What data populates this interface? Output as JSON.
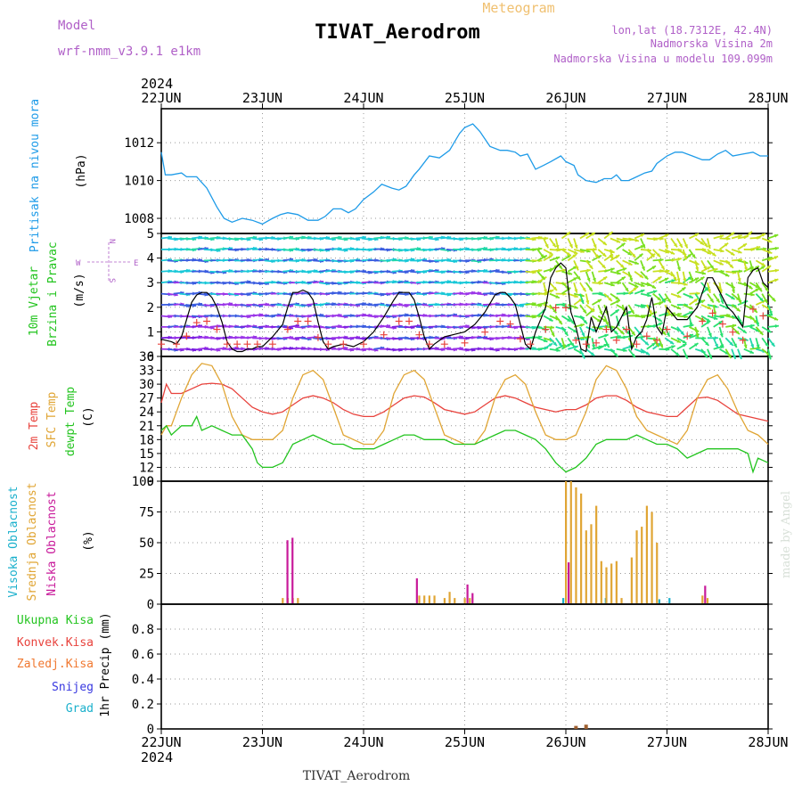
{
  "header": {
    "model_label": "Model",
    "model_value": "wrf-nmm_v3.9.1  e1km",
    "meteogram_label": "Meteogram",
    "station_title": "TIVAT_Aerodrom",
    "lonlat": "lon,lat (18.7312E, 42.4N)",
    "altitude": "Nadmorska Visina 2m",
    "model_altitude": "Nadmorska Visina u modelu 109.099m",
    "year_top": "2024",
    "year_bottom": "2024",
    "footer_station": "TIVAT_Aerodrom",
    "credit": "made by Angel"
  },
  "colors": {
    "pressure": "#1e9be8",
    "temp2m": "#e8423c",
    "sfc_temp": "#e0a534",
    "dewpt": "#22c41e",
    "wind_speed": "#000000",
    "gust_marks": "#e8423c",
    "cloud_high": "#1ab0cc",
    "cloud_mid": "#e0a534",
    "cloud_low": "#c81a9a",
    "title_purple": "#b060c8",
    "meteogram_orange": "#f0c070"
  },
  "chart_data": [
    {
      "type": "line",
      "panel": "pressure",
      "ylabel_lines": [
        "Pritisak na nivou mora"
      ],
      "unit": "(hPa)",
      "ylim": [
        1007.2,
        1013.8
      ],
      "yticks": [
        1008,
        1010,
        1012
      ],
      "x_days": [
        "22JUN",
        "23JUN",
        "24JUN",
        "25JUN",
        "26JUN",
        "27JUN",
        "28JUN"
      ],
      "grid": true,
      "series": [
        {
          "x": [
            0,
            0.04,
            0.1,
            0.2,
            0.25,
            0.35,
            0.45,
            0.55,
            0.62,
            0.7,
            0.8,
            0.9,
            1.0,
            1.1,
            1.18,
            1.25,
            1.35,
            1.45,
            1.55,
            1.62,
            1.7,
            1.78,
            1.85,
            1.92,
            2.0,
            2.1,
            2.18,
            2.28,
            2.35,
            2.42,
            2.5,
            2.55,
            2.65,
            2.75,
            2.85,
            2.95,
            3.0,
            3.08,
            3.15,
            3.25,
            3.35,
            3.42,
            3.5,
            3.55,
            3.62,
            3.7,
            3.78,
            3.85,
            3.95,
            4.0,
            4.08,
            4.12,
            4.2,
            4.3,
            4.38,
            4.45,
            4.5,
            4.55,
            4.62,
            4.7,
            4.78,
            4.85,
            4.9,
            5.0,
            5.08,
            5.15,
            5.25,
            5.35,
            5.42,
            5.5,
            5.58,
            5.65,
            5.75,
            5.85,
            5.92,
            6.0
          ],
          "y": [
            1011.5,
            1010.3,
            1010.3,
            1010.4,
            1010.2,
            1010.2,
            1009.6,
            1008.6,
            1008.0,
            1007.8,
            1008.0,
            1007.9,
            1007.7,
            1008.0,
            1008.2,
            1008.3,
            1008.2,
            1007.9,
            1007.9,
            1008.1,
            1008.5,
            1008.5,
            1008.3,
            1008.5,
            1009.0,
            1009.4,
            1009.8,
            1009.6,
            1009.5,
            1009.7,
            1010.3,
            1010.6,
            1011.3,
            1011.2,
            1011.6,
            1012.5,
            1012.8,
            1013.0,
            1012.6,
            1011.8,
            1011.6,
            1011.6,
            1011.5,
            1011.3,
            1011.4,
            1010.6,
            1010.8,
            1011.0,
            1011.3,
            1011.0,
            1010.8,
            1010.3,
            1010.0,
            1009.9,
            1010.1,
            1010.1,
            1010.3,
            1010.0,
            1010.0,
            1010.2,
            1010.4,
            1010.5,
            1010.9,
            1011.3,
            1011.5,
            1011.5,
            1011.3,
            1011.1,
            1011.1,
            1011.4,
            1011.6,
            1011.3,
            1011.4,
            1011.5,
            1011.3,
            1011.3
          ],
          "name": ""
        }
      ]
    },
    {
      "type": "line",
      "panel": "wind",
      "ylabel_lines": [
        "10m Vjetar",
        "Brzina i Pravac"
      ],
      "unit": "(m/s)",
      "compass": [
        "N",
        "S",
        "W",
        "E"
      ],
      "ylim": [
        0,
        5
      ],
      "yticks": [
        0,
        1,
        2,
        3,
        4,
        5
      ],
      "grid": true,
      "series": [
        {
          "name": "",
          "x": [
            0,
            0.1,
            0.15,
            0.2,
            0.25,
            0.3,
            0.35,
            0.4,
            0.45,
            0.5,
            0.55,
            0.6,
            0.65,
            0.7,
            0.75,
            0.8,
            0.85,
            0.9,
            0.95,
            1.0,
            1.1,
            1.2,
            1.25,
            1.3,
            1.35,
            1.4,
            1.45,
            1.5,
            1.55,
            1.6,
            1.65,
            1.7,
            1.8,
            1.9,
            2.0,
            2.1,
            2.2,
            2.3,
            2.35,
            2.4,
            2.45,
            2.5,
            2.55,
            2.6,
            2.65,
            2.7,
            2.8,
            2.9,
            3.0,
            3.1,
            3.2,
            3.3,
            3.35,
            3.4,
            3.45,
            3.5,
            3.55,
            3.6,
            3.65,
            3.7,
            3.8,
            3.85,
            3.9,
            3.95,
            4.0,
            4.05,
            4.1,
            4.15,
            4.2,
            4.25,
            4.3,
            4.35,
            4.4,
            4.45,
            4.5,
            4.55,
            4.6,
            4.65,
            4.7,
            4.75,
            4.8,
            4.85,
            4.9,
            4.95,
            5.0,
            5.1,
            5.2,
            5.3,
            5.35,
            5.4,
            5.45,
            5.5,
            5.55,
            5.6,
            5.65,
            5.7,
            5.75,
            5.8,
            5.85,
            5.9,
            5.95,
            6.0
          ],
          "y": [
            0.7,
            0.6,
            0.5,
            0.8,
            1.5,
            2.2,
            2.5,
            2.6,
            2.6,
            2.4,
            2.0,
            1.4,
            0.6,
            0.3,
            0.2,
            0.2,
            0.3,
            0.3,
            0.4,
            0.4,
            0.8,
            1.3,
            2.0,
            2.6,
            2.6,
            2.7,
            2.6,
            2.3,
            1.4,
            0.6,
            0.3,
            0.4,
            0.5,
            0.4,
            0.6,
            1.0,
            1.6,
            2.3,
            2.6,
            2.6,
            2.6,
            2.3,
            1.6,
            0.8,
            0.3,
            0.5,
            0.8,
            0.9,
            1.0,
            1.3,
            1.8,
            2.5,
            2.6,
            2.6,
            2.4,
            2.1,
            1.3,
            0.5,
            0.3,
            1.0,
            2.0,
            3.2,
            3.6,
            3.8,
            3.6,
            1.8,
            1.2,
            0.3,
            0.2,
            1.6,
            1.0,
            1.5,
            2.0,
            1.0,
            1.2,
            1.6,
            2.0,
            0.3,
            0.8,
            1.0,
            1.5,
            2.4,
            1.2,
            0.9,
            2.0,
            1.5,
            1.5,
            2.0,
            2.6,
            3.2,
            3.2,
            2.8,
            2.4,
            2.0,
            1.8,
            1.5,
            1.2,
            3.2,
            3.5,
            3.6,
            3.0,
            2.8
          ]
        }
      ]
    },
    {
      "type": "line",
      "panel": "temperature",
      "ylabel_lines": [
        "2m Temp",
        "SFC Temp",
        "dewpt Temp"
      ],
      "unit": "(C)",
      "ylim": [
        9,
        36
      ],
      "yticks": [
        9,
        12,
        15,
        18,
        21,
        24,
        27,
        30,
        33,
        36
      ],
      "grid": true,
      "series": [
        {
          "name": "2m Temp",
          "x": [
            0,
            0.05,
            0.1,
            0.2,
            0.3,
            0.4,
            0.5,
            0.6,
            0.7,
            0.8,
            0.9,
            1.0,
            1.1,
            1.2,
            1.3,
            1.4,
            1.5,
            1.6,
            1.7,
            1.8,
            1.9,
            2.0,
            2.1,
            2.2,
            2.3,
            2.4,
            2.5,
            2.6,
            2.7,
            2.8,
            2.9,
            3.0,
            3.1,
            3.2,
            3.3,
            3.4,
            3.5,
            3.6,
            3.7,
            3.8,
            3.9,
            4.0,
            4.1,
            4.2,
            4.3,
            4.4,
            4.5,
            4.6,
            4.7,
            4.8,
            4.9,
            5.0,
            5.1,
            5.2,
            5.3,
            5.4,
            5.5,
            5.6,
            5.7,
            5.8,
            5.9,
            6.0
          ],
          "y": [
            26,
            30,
            28,
            28,
            29,
            30,
            30.2,
            30,
            29,
            27,
            25,
            24,
            23.5,
            24,
            25.5,
            27,
            27.5,
            27,
            26,
            24.5,
            23.5,
            23,
            23,
            24,
            25.5,
            27,
            27.5,
            27.2,
            26,
            24.5,
            24,
            23.5,
            24,
            25.5,
            27,
            27.5,
            27,
            26,
            25,
            24.5,
            24,
            24.5,
            24.5,
            25.5,
            27,
            27.5,
            27.5,
            26.5,
            25,
            24,
            23.5,
            23,
            23,
            25,
            27,
            27.2,
            26.5,
            25,
            23.5,
            23,
            22.5,
            22
          ]
        },
        {
          "name": "SFC Temp",
          "x": [
            0,
            0.05,
            0.1,
            0.2,
            0.3,
            0.4,
            0.5,
            0.6,
            0.7,
            0.8,
            0.9,
            1.0,
            1.1,
            1.2,
            1.3,
            1.4,
            1.5,
            1.6,
            1.7,
            1.8,
            1.9,
            2.0,
            2.1,
            2.2,
            2.3,
            2.4,
            2.5,
            2.6,
            2.7,
            2.8,
            2.9,
            3.0,
            3.1,
            3.2,
            3.3,
            3.4,
            3.5,
            3.6,
            3.7,
            3.8,
            3.9,
            4.0,
            4.1,
            4.2,
            4.3,
            4.4,
            4.5,
            4.6,
            4.7,
            4.8,
            4.9,
            5.0,
            5.1,
            5.2,
            5.3,
            5.4,
            5.5,
            5.6,
            5.7,
            5.8,
            5.9,
            6.0
          ],
          "y": [
            19,
            21,
            21,
            27,
            32,
            34.5,
            34,
            30,
            23,
            19,
            18,
            18,
            18,
            20,
            27,
            32,
            33,
            31,
            25,
            19,
            18,
            17,
            17,
            20,
            28,
            32,
            33,
            31,
            25,
            19,
            18,
            17,
            17,
            20,
            27,
            31,
            32,
            30,
            24,
            19,
            18,
            18,
            19,
            24,
            31,
            34,
            33,
            29,
            23,
            20,
            19,
            18,
            17,
            20,
            27,
            31,
            32,
            29,
            24,
            20,
            19,
            17
          ]
        },
        {
          "name": "dewpt Temp",
          "x": [
            0,
            0.05,
            0.1,
            0.2,
            0.3,
            0.35,
            0.4,
            0.5,
            0.6,
            0.7,
            0.8,
            0.9,
            0.95,
            1.0,
            1.1,
            1.2,
            1.3,
            1.4,
            1.5,
            1.6,
            1.7,
            1.8,
            1.9,
            2.0,
            2.1,
            2.2,
            2.3,
            2.4,
            2.5,
            2.6,
            2.7,
            2.8,
            2.9,
            3.0,
            3.1,
            3.2,
            3.3,
            3.4,
            3.5,
            3.6,
            3.7,
            3.8,
            3.9,
            4.0,
            4.1,
            4.2,
            4.3,
            4.4,
            4.5,
            4.6,
            4.7,
            4.8,
            4.9,
            5.0,
            5.1,
            5.2,
            5.3,
            5.4,
            5.5,
            5.6,
            5.7,
            5.8,
            5.85,
            5.9,
            6.0
          ],
          "y": [
            20,
            21,
            19,
            21,
            21,
            23,
            20,
            21,
            20,
            19,
            19,
            16,
            13,
            12,
            12,
            13,
            17,
            18,
            19,
            18,
            17,
            17,
            16,
            16,
            16,
            17,
            18,
            19,
            19,
            18,
            18,
            18,
            17,
            17,
            17,
            18,
            19,
            20,
            20,
            19,
            18,
            16,
            13,
            11,
            12,
            14,
            17,
            18,
            18,
            18,
            19,
            18,
            17,
            17,
            16,
            14,
            15,
            16,
            16,
            16,
            16,
            15,
            11,
            14,
            13
          ]
        }
      ]
    },
    {
      "type": "bar",
      "panel": "cloud",
      "ylabel_lines": [
        "Visoka Oblacnost",
        "Srednja Oblacnost",
        "Niska Oblacnost"
      ],
      "unit": "(%)",
      "ylim": [
        0,
        100
      ],
      "yticks": [
        0,
        25,
        50,
        75,
        100
      ],
      "grid": true,
      "series": [
        {
          "name": "Visoka Oblacnost",
          "x": [
            4.0,
            4.42,
            4.95,
            5.05
          ],
          "values": [
            5,
            5,
            4,
            5
          ]
        },
        {
          "name": "Srednja Oblacnost",
          "x": [
            1.2,
            1.25,
            1.3,
            1.35,
            2.55,
            2.6,
            2.65,
            2.7,
            2.8,
            2.85,
            2.9,
            3.0,
            3.05,
            4.0,
            4.05,
            4.1,
            4.15,
            4.2,
            4.25,
            4.3,
            4.35,
            4.4,
            4.45,
            4.5,
            4.55,
            4.65,
            4.7,
            4.75,
            4.8,
            4.85,
            4.9,
            5.35,
            5.4
          ],
          "values": [
            5,
            5,
            5,
            5,
            7,
            7,
            7,
            7,
            5,
            10,
            5,
            5,
            5,
            100,
            100,
            95,
            90,
            60,
            65,
            80,
            35,
            30,
            33,
            35,
            5,
            38,
            60,
            63,
            80,
            75,
            50,
            7,
            5
          ]
        },
        {
          "name": "Niska Oblacnost",
          "x": [
            1.22,
            1.27,
            2.5,
            3.0,
            3.05,
            4.0,
            5.35
          ],
          "values": [
            52,
            54,
            21,
            16,
            9,
            34,
            15
          ]
        }
      ]
    },
    {
      "type": "bar",
      "panel": "precip",
      "ylabel_lines": [
        "1hr Precip (mm)"
      ],
      "legend_labels": [
        "Ukupna Kisa",
        "Konvek.Kisa",
        "Zaledj.Kisa",
        "Snijeg",
        "Grad"
      ],
      "ylim": [
        0,
        1.0
      ],
      "yticks": [
        0,
        0.2,
        0.4,
        0.6,
        0.8
      ],
      "grid": true,
      "series": [
        {
          "name": "Ukupna Kisa",
          "x": [
            4.1,
            4.2
          ],
          "values": [
            0.01,
            0.02
          ]
        }
      ]
    }
  ]
}
